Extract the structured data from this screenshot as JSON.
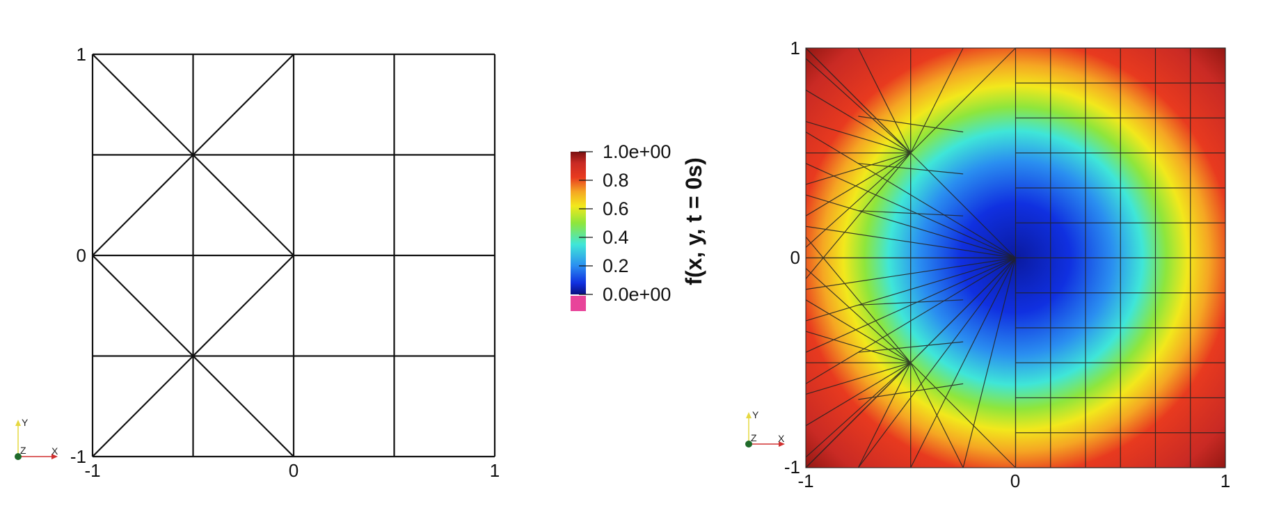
{
  "left_view": {
    "x_ticks": [
      "-1",
      "0",
      "1"
    ],
    "y_ticks": [
      "-1",
      "0",
      "1"
    ],
    "axes_triad": {
      "y": "Y",
      "z": "Z",
      "x": "X"
    }
  },
  "right_view": {
    "x_ticks": [
      "-1",
      "0",
      "1"
    ],
    "y_ticks": [
      "-1",
      "0",
      "1"
    ],
    "axes_triad": {
      "y": "Y",
      "z": "Z",
      "x": "X"
    }
  },
  "colorbar": {
    "title": "f(x, y, t = 0s)",
    "labels": [
      "1.0e+00",
      "0.8",
      "0.6",
      "0.4",
      "0.2",
      "0.0e+00"
    ],
    "values": [
      1.0,
      0.8,
      0.6,
      0.4,
      0.2,
      0.0
    ],
    "nan_color": "#e8449a",
    "colors": [
      "#7a1010",
      "#c92a24",
      "#e83a1f",
      "#f5a623",
      "#f2e81c",
      "#8ee63c",
      "#3fe6d8",
      "#2a8ef0",
      "#1030e0",
      "#081080"
    ]
  },
  "field": {
    "center_color": "#0a1aa0",
    "edge_color": "#8a1410"
  }
}
